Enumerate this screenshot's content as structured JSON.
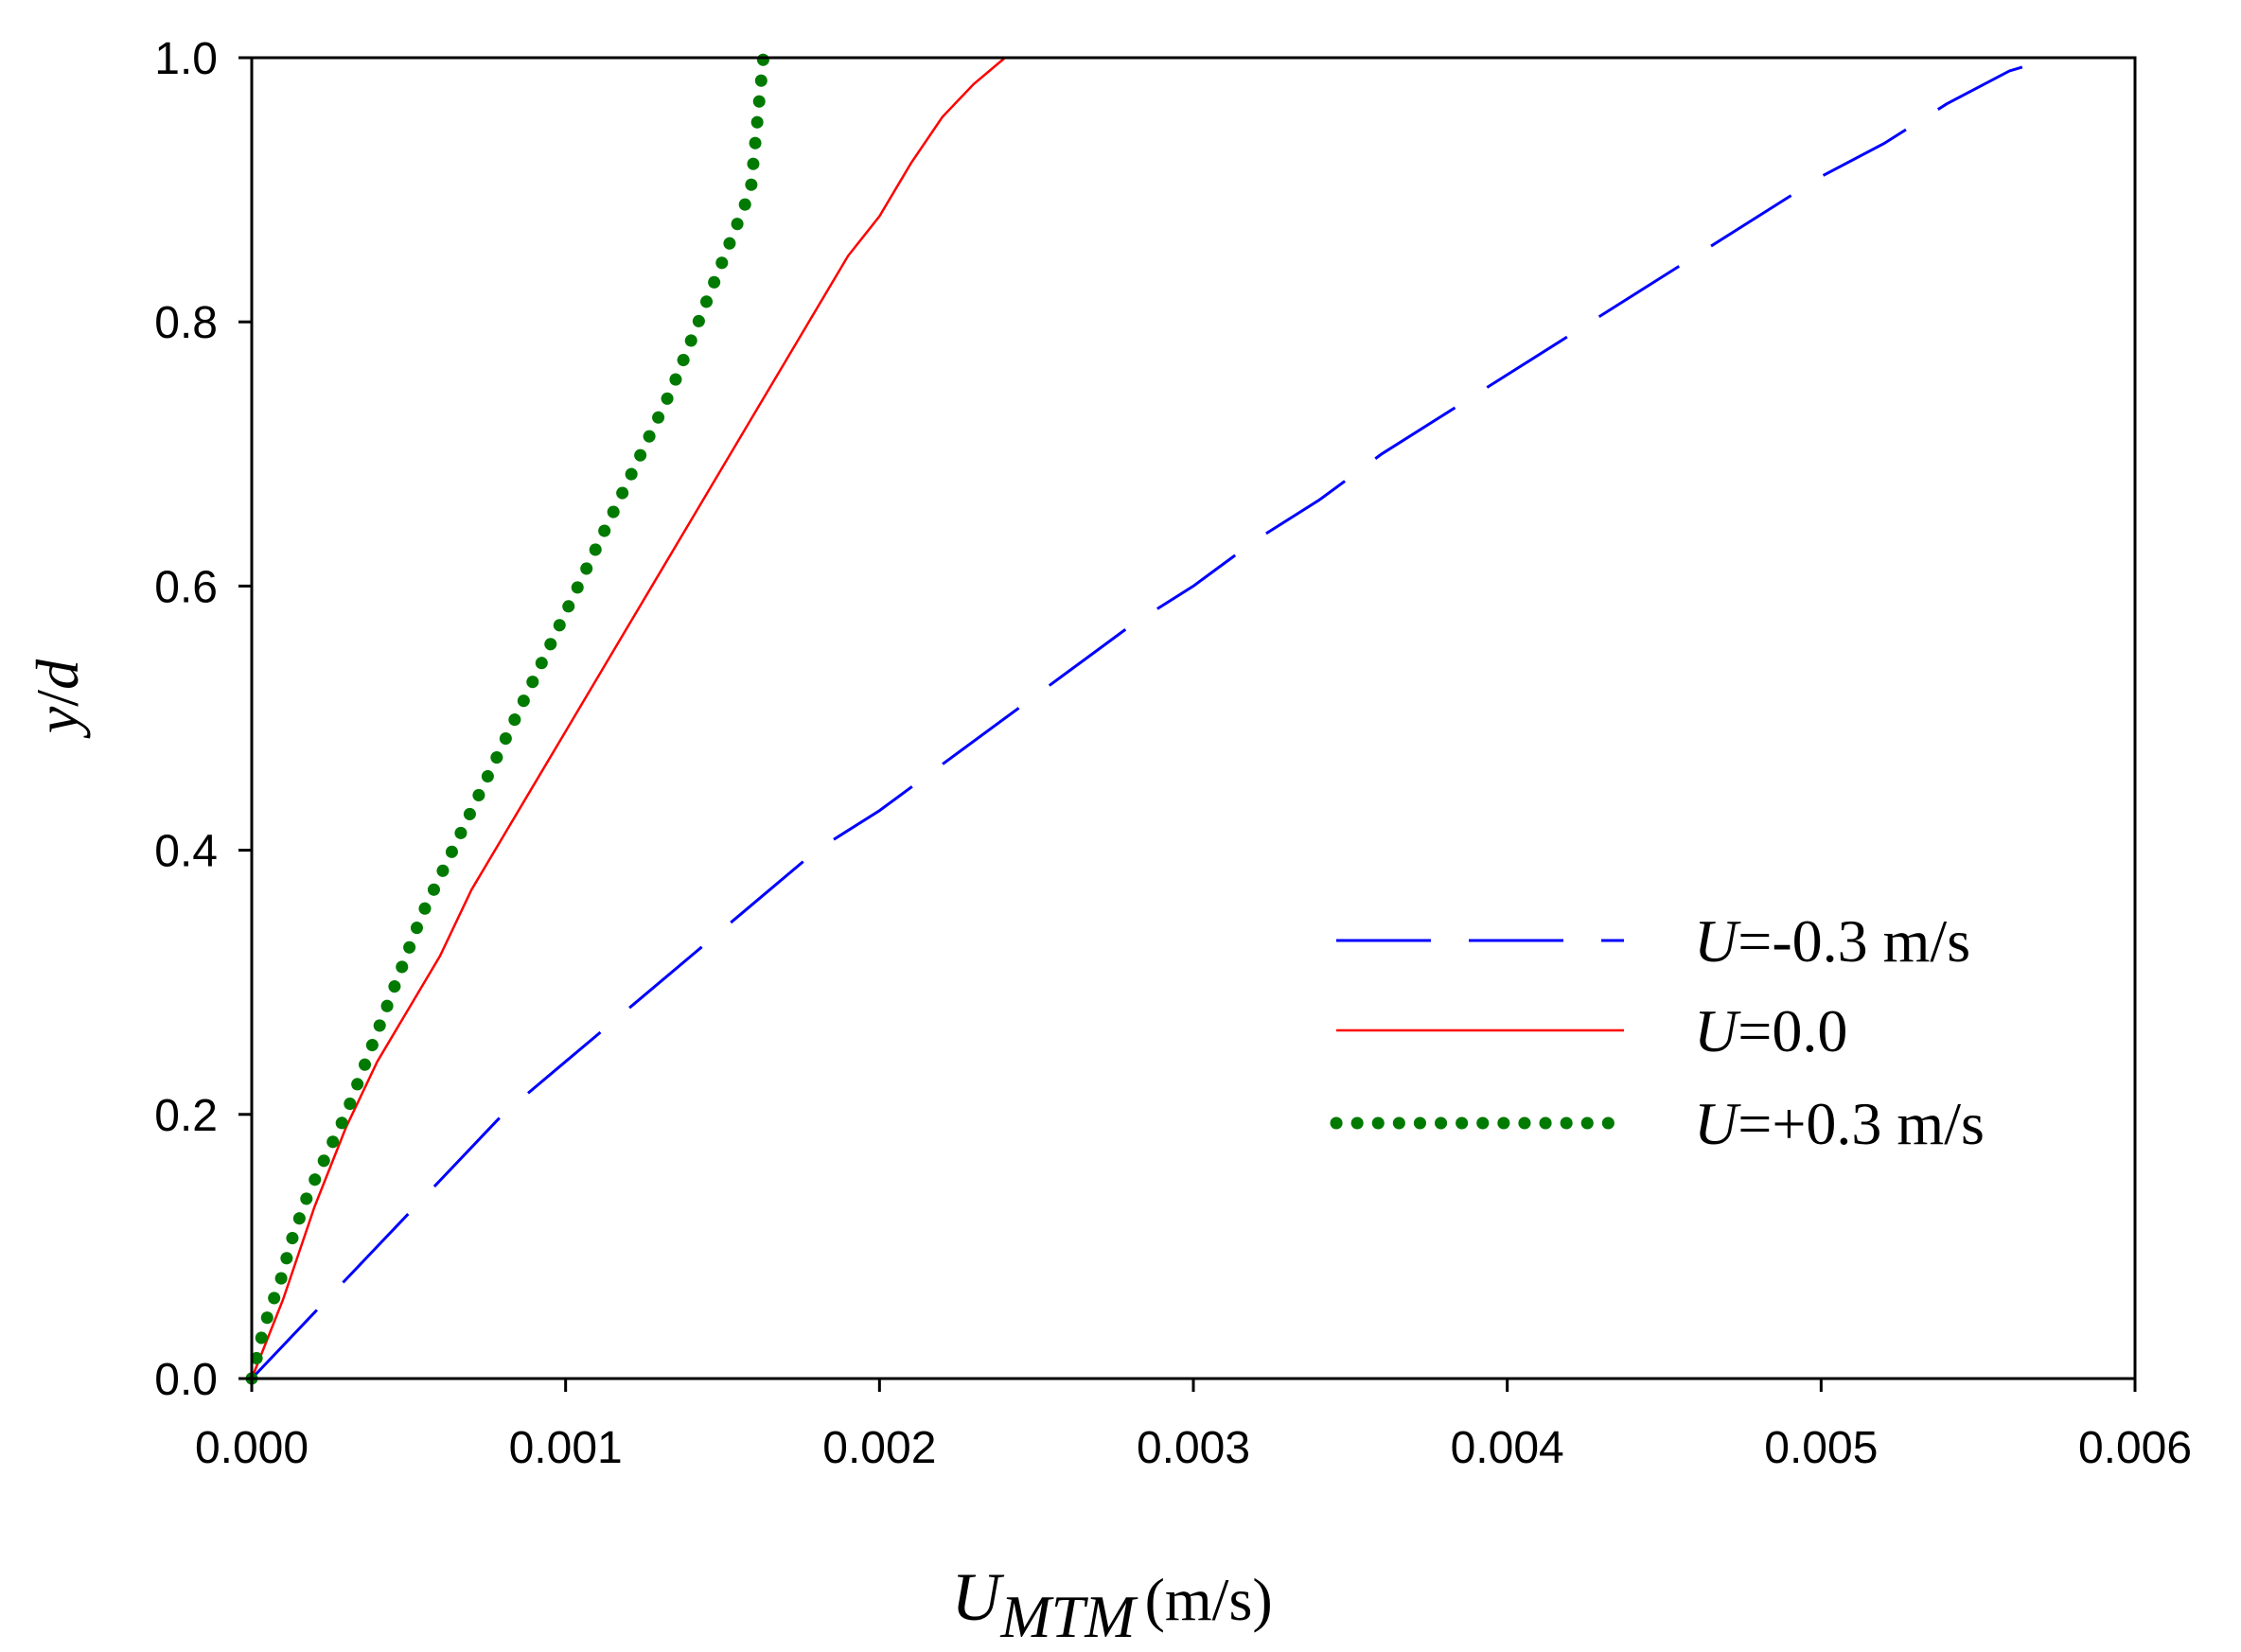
{
  "chart_data": {
    "type": "line",
    "title": "",
    "xlabel": {
      "symbol": "U",
      "subscript": "MTM",
      "unit": "(m/s)"
    },
    "ylabel": {
      "var": "y",
      "slash": "/",
      "denom": "d"
    },
    "xlim": [
      0,
      0.006
    ],
    "ylim": [
      0,
      1.0
    ],
    "xticks": [
      "0.000",
      "0.001",
      "0.002",
      "0.003",
      "0.004",
      "0.005",
      "0.006"
    ],
    "yticks": [
      "0.0",
      "0.2",
      "0.4",
      "0.6",
      "0.8",
      "1.0"
    ],
    "grid": false,
    "legend_position": "bottom-right",
    "series": [
      {
        "name": "U=-0.3 m/s",
        "symbol": "U",
        "rest": "=-0.3 m/s",
        "style": "dashed",
        "color": "#0000ff",
        "x": [
          0.0,
          0.0002,
          0.0004,
          0.0006,
          0.0008,
          0.001,
          0.0012,
          0.0014,
          0.0016,
          0.0018,
          0.002,
          0.0022,
          0.0024,
          0.0026,
          0.0028,
          0.003,
          0.0032,
          0.0034,
          0.0036,
          0.0038,
          0.004,
          0.0042,
          0.0044,
          0.0046,
          0.0048,
          0.005,
          0.0052,
          0.0054,
          0.0056,
          0.00574
        ],
        "y": [
          0.0,
          0.05,
          0.1,
          0.15,
          0.2,
          0.24,
          0.28,
          0.32,
          0.36,
          0.4,
          0.43,
          0.465,
          0.5,
          0.535,
          0.57,
          0.6,
          0.635,
          0.665,
          0.7,
          0.73,
          0.76,
          0.79,
          0.82,
          0.85,
          0.88,
          0.91,
          0.935,
          0.965,
          0.99,
          1.0
        ]
      },
      {
        "name": "U=0.0",
        "symbol": "U",
        "rest": "=0.0",
        "style": "solid",
        "color": "#ff0000",
        "x": [
          0.0,
          0.0001,
          0.0002,
          0.0003,
          0.0004,
          0.0005,
          0.0006,
          0.0007,
          0.0008,
          0.0009,
          0.001,
          0.0011,
          0.0012,
          0.0013,
          0.0014,
          0.0015,
          0.0016,
          0.0017,
          0.0018,
          0.0019,
          0.002,
          0.0021,
          0.0022,
          0.0023,
          0.0024
        ],
        "y": [
          0.0,
          0.06,
          0.13,
          0.19,
          0.24,
          0.28,
          0.32,
          0.37,
          0.41,
          0.45,
          0.49,
          0.53,
          0.57,
          0.61,
          0.65,
          0.69,
          0.73,
          0.77,
          0.81,
          0.85,
          0.88,
          0.92,
          0.955,
          0.98,
          1.0
        ]
      },
      {
        "name": "U=+0.3 m/s",
        "symbol": "U",
        "rest": "=+0.3 m/s",
        "style": "dotted",
        "color": "#007a00",
        "x": [
          0.0,
          2e-05,
          4e-05,
          7e-05,
          0.0001,
          0.00012,
          0.00015,
          0.00018,
          0.00022,
          0.00026,
          0.0003,
          0.00034,
          0.00038,
          0.00042,
          0.00046,
          0.0005,
          0.00054,
          0.00059,
          0.00064,
          0.00069,
          0.00074,
          0.00079,
          0.00084,
          0.00089,
          0.00094,
          0.00099,
          0.00104,
          0.00109,
          0.00114,
          0.00119,
          0.00124,
          0.00129,
          0.00134,
          0.00139,
          0.00144,
          0.00149,
          0.00154,
          0.00159,
          0.00163
        ],
        "y": [
          0.0,
          0.02,
          0.04,
          0.06,
          0.08,
          0.1,
          0.12,
          0.14,
          0.16,
          0.18,
          0.2,
          0.225,
          0.25,
          0.275,
          0.3,
          0.325,
          0.35,
          0.375,
          0.4,
          0.425,
          0.45,
          0.475,
          0.5,
          0.525,
          0.55,
          0.575,
          0.6,
          0.625,
          0.65,
          0.675,
          0.7,
          0.725,
          0.75,
          0.78,
          0.81,
          0.84,
          0.87,
          0.9,
          1.0
        ]
      }
    ]
  }
}
